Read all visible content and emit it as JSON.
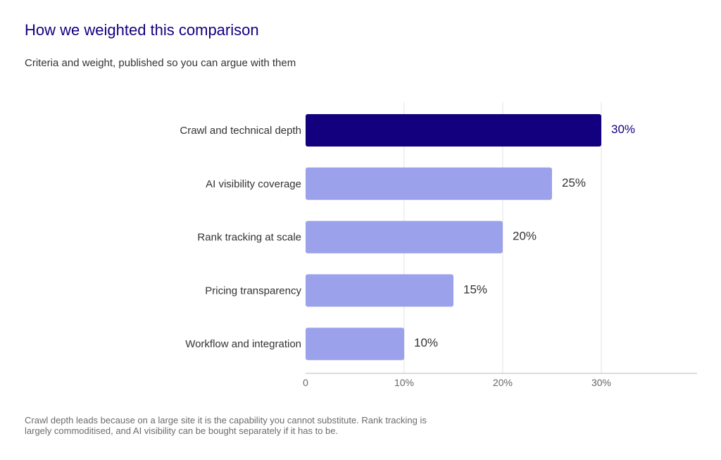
{
  "header": {
    "title": "How we weighted this comparison",
    "subtitle": "Criteria and weight, published so you can argue with them"
  },
  "footnote": "Crawl depth leads because on a large site it is the capability you cannot substitute. Rank tracking is largely commoditised, and AI visibility can be bought separately if it has to be.",
  "colors": {
    "highlight_bar": "#12007f",
    "bar": "#9ba1ea",
    "gridline": "#e3e3e3",
    "axis": "#bbbbbb",
    "category_text": "#333333",
    "tick_text": "#666666",
    "value_text": "#333333"
  },
  "chart_data": {
    "type": "bar",
    "orientation": "horizontal",
    "categories": [
      "Crawl and technical depth",
      "AI visibility coverage",
      "Rank tracking at scale",
      "Pricing transparency",
      "Workflow and integration"
    ],
    "values": [
      30,
      25,
      20,
      15,
      10
    ],
    "value_labels": [
      "30%",
      "25%",
      "20%",
      "15%",
      "10%"
    ],
    "highlight_index": 0,
    "xlim": [
      0,
      40
    ],
    "xticks": [
      0,
      10,
      20,
      30
    ],
    "xtick_labels": [
      "0",
      "10%",
      "20%",
      "30%"
    ],
    "grid": true
  }
}
